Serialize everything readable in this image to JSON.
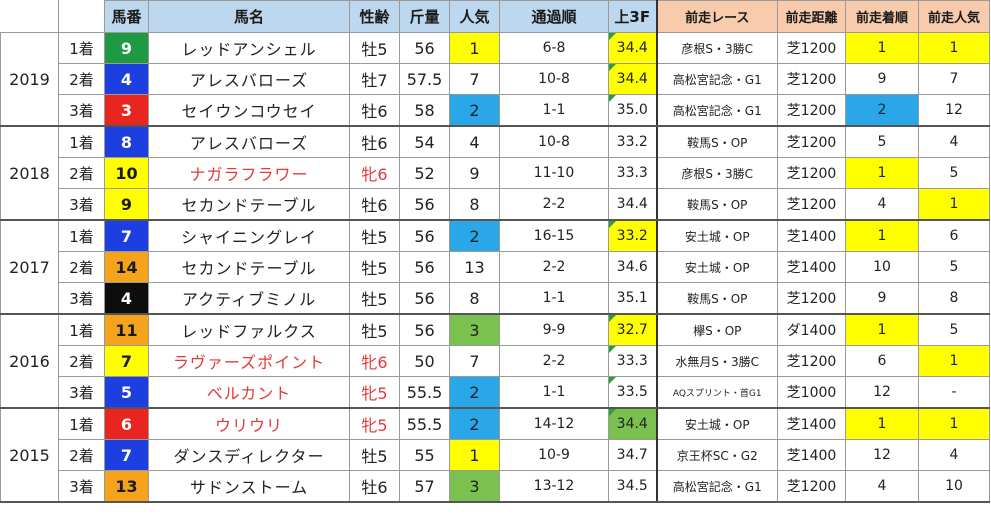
{
  "headers": [
    "馬番",
    "馬名",
    "性齢",
    "斤量",
    "人気",
    "通過順",
    "上3F",
    "前走レース",
    "前走距離",
    "前走着順",
    "前走人気"
  ],
  "groups": [
    {
      "year": "2019",
      "rows": [
        {
          "rank": "1着",
          "num": "9",
          "num_bg": "#1f9a43",
          "num_fg": "#ffffff",
          "name": "レッドアンシェル",
          "name_red": false,
          "sex": "牡5",
          "sex_red": false,
          "weight": "56",
          "pop": "1",
          "pop_hl": "y",
          "pass": "6-8",
          "f3": "34.4",
          "f3_hl": "y",
          "f3_mark": true,
          "prev_race": "彦根S・3勝C",
          "prev_small": false,
          "prev_dist": "芝1200",
          "prev_pos": "1",
          "prev_pos_hl": "y",
          "prev_pop": "1",
          "prev_pop_hl": "y"
        },
        {
          "rank": "2着",
          "num": "4",
          "num_bg": "#1d3fe0",
          "num_fg": "#ffffff",
          "name": "アレスバローズ",
          "name_red": false,
          "sex": "牡7",
          "sex_red": false,
          "weight": "57.5",
          "pop": "7",
          "pop_hl": "",
          "pass": "10-8",
          "f3": "34.4",
          "f3_hl": "y",
          "f3_mark": true,
          "prev_race": "高松宮記念・G1",
          "prev_small": false,
          "prev_dist": "芝1200",
          "prev_pos": "9",
          "prev_pos_hl": "",
          "prev_pop": "7",
          "prev_pop_hl": ""
        },
        {
          "rank": "3着",
          "num": "3",
          "num_bg": "#e8261f",
          "num_fg": "#ffffff",
          "name": "セイウンコウセイ",
          "name_red": false,
          "sex": "牡6",
          "sex_red": false,
          "weight": "58",
          "pop": "2",
          "pop_hl": "b",
          "pass": "1-1",
          "f3": "35.0",
          "f3_hl": "",
          "f3_mark": true,
          "prev_race": "高松宮記念・G1",
          "prev_small": false,
          "prev_dist": "芝1200",
          "prev_pos": "2",
          "prev_pos_hl": "b",
          "prev_pop": "12",
          "prev_pop_hl": ""
        }
      ]
    },
    {
      "year": "2018",
      "rows": [
        {
          "rank": "1着",
          "num": "8",
          "num_bg": "#1d3fe0",
          "num_fg": "#ffffff",
          "name": "アレスバローズ",
          "name_red": false,
          "sex": "牡6",
          "sex_red": false,
          "weight": "54",
          "pop": "4",
          "pop_hl": "",
          "pass": "10-8",
          "f3": "33.2",
          "f3_hl": "",
          "f3_mark": false,
          "prev_race": "鞍馬S・OP",
          "prev_small": false,
          "prev_dist": "芝1200",
          "prev_pos": "5",
          "prev_pos_hl": "",
          "prev_pop": "4",
          "prev_pop_hl": ""
        },
        {
          "rank": "2着",
          "num": "10",
          "num_bg": "#ffff00",
          "num_fg": "#1a1a1a",
          "name": "ナガラフラワー",
          "name_red": true,
          "sex": "牝6",
          "sex_red": true,
          "weight": "52",
          "pop": "9",
          "pop_hl": "",
          "pass": "11-10",
          "f3": "33.3",
          "f3_hl": "",
          "f3_mark": false,
          "prev_race": "彦根S・3勝C",
          "prev_small": false,
          "prev_dist": "芝1200",
          "prev_pos": "1",
          "prev_pos_hl": "y",
          "prev_pop": "5",
          "prev_pop_hl": ""
        },
        {
          "rank": "3着",
          "num": "9",
          "num_bg": "#ffff00",
          "num_fg": "#1a1a1a",
          "name": "セカンドテーブル",
          "name_red": false,
          "sex": "牡6",
          "sex_red": false,
          "weight": "56",
          "pop": "8",
          "pop_hl": "",
          "pass": "2-2",
          "f3": "34.4",
          "f3_hl": "",
          "f3_mark": false,
          "prev_race": "鞍馬S・OP",
          "prev_small": false,
          "prev_dist": "芝1200",
          "prev_pos": "4",
          "prev_pos_hl": "",
          "prev_pop": "1",
          "prev_pop_hl": "y"
        }
      ]
    },
    {
      "year": "2017",
      "rows": [
        {
          "rank": "1着",
          "num": "7",
          "num_bg": "#1d3fe0",
          "num_fg": "#ffffff",
          "name": "シャイニングレイ",
          "name_red": false,
          "sex": "牡5",
          "sex_red": false,
          "weight": "56",
          "pop": "2",
          "pop_hl": "b",
          "pass": "16-15",
          "f3": "33.2",
          "f3_hl": "y",
          "f3_mark": true,
          "prev_race": "安土城・OP",
          "prev_small": false,
          "prev_dist": "芝1400",
          "prev_pos": "1",
          "prev_pos_hl": "y",
          "prev_pop": "6",
          "prev_pop_hl": ""
        },
        {
          "rank": "2着",
          "num": "14",
          "num_bg": "#f5a31a",
          "num_fg": "#1a1a1a",
          "name": "セカンドテーブル",
          "name_red": false,
          "sex": "牡5",
          "sex_red": false,
          "weight": "56",
          "pop": "13",
          "pop_hl": "",
          "pass": "2-2",
          "f3": "34.6",
          "f3_hl": "",
          "f3_mark": false,
          "prev_race": "安土城・OP",
          "prev_small": false,
          "prev_dist": "芝1400",
          "prev_pos": "10",
          "prev_pos_hl": "",
          "prev_pop": "5",
          "prev_pop_hl": ""
        },
        {
          "rank": "3着",
          "num": "4",
          "num_bg": "#0d0d0d",
          "num_fg": "#ffffff",
          "name": "アクティブミノル",
          "name_red": false,
          "sex": "牡5",
          "sex_red": false,
          "weight": "56",
          "pop": "8",
          "pop_hl": "",
          "pass": "1-1",
          "f3": "35.1",
          "f3_hl": "",
          "f3_mark": false,
          "prev_race": "鞍馬S・OP",
          "prev_small": false,
          "prev_dist": "芝1200",
          "prev_pos": "9",
          "prev_pos_hl": "",
          "prev_pop": "8",
          "prev_pop_hl": ""
        }
      ]
    },
    {
      "year": "2016",
      "rows": [
        {
          "rank": "1着",
          "num": "11",
          "num_bg": "#f5a31a",
          "num_fg": "#1a1a1a",
          "name": "レッドファルクス",
          "name_red": false,
          "sex": "牡5",
          "sex_red": false,
          "weight": "56",
          "pop": "3",
          "pop_hl": "g",
          "pass": "9-9",
          "f3": "32.7",
          "f3_hl": "y",
          "f3_mark": true,
          "prev_race": "欅S・OP",
          "prev_small": false,
          "prev_dist": "ダ1400",
          "prev_pos": "1",
          "prev_pos_hl": "y",
          "prev_pop": "5",
          "prev_pop_hl": ""
        },
        {
          "rank": "2着",
          "num": "7",
          "num_bg": "#ffff00",
          "num_fg": "#1a1a1a",
          "name": "ラヴァーズポイント",
          "name_red": true,
          "sex": "牝6",
          "sex_red": true,
          "weight": "50",
          "pop": "7",
          "pop_hl": "",
          "pass": "2-2",
          "f3": "33.3",
          "f3_hl": "",
          "f3_mark": true,
          "prev_race": "水無月S・3勝C",
          "prev_small": false,
          "prev_dist": "芝1200",
          "prev_pos": "6",
          "prev_pos_hl": "",
          "prev_pop": "1",
          "prev_pop_hl": "y"
        },
        {
          "rank": "3着",
          "num": "5",
          "num_bg": "#1d3fe0",
          "num_fg": "#ffffff",
          "name": "ベルカント",
          "name_red": true,
          "sex": "牝5",
          "sex_red": true,
          "weight": "55.5",
          "pop": "2",
          "pop_hl": "b",
          "pass": "1-1",
          "f3": "33.5",
          "f3_hl": "",
          "f3_mark": true,
          "prev_race": "AQスプリント・首G1",
          "prev_small": true,
          "prev_dist": "芝1000",
          "prev_pos": "12",
          "prev_pos_hl": "",
          "prev_pop": "-",
          "prev_pop_hl": ""
        }
      ]
    },
    {
      "year": "2015",
      "rows": [
        {
          "rank": "1着",
          "num": "6",
          "num_bg": "#e8261f",
          "num_fg": "#ffffff",
          "name": "ウリウリ",
          "name_red": true,
          "sex": "牝5",
          "sex_red": true,
          "weight": "55.5",
          "pop": "2",
          "pop_hl": "b",
          "pass": "14-12",
          "f3": "34.4",
          "f3_hl": "g",
          "f3_mark": true,
          "prev_race": "安土城・OP",
          "prev_small": false,
          "prev_dist": "芝1400",
          "prev_pos": "1",
          "prev_pos_hl": "y",
          "prev_pop": "1",
          "prev_pop_hl": "y"
        },
        {
          "rank": "2着",
          "num": "7",
          "num_bg": "#1d3fe0",
          "num_fg": "#ffffff",
          "name": "ダンスディレクター",
          "name_red": false,
          "sex": "牡5",
          "sex_red": false,
          "weight": "55",
          "pop": "1",
          "pop_hl": "y",
          "pass": "10-9",
          "f3": "34.7",
          "f3_hl": "",
          "f3_mark": false,
          "prev_race": "京王杯SC・G2",
          "prev_small": false,
          "prev_dist": "芝1400",
          "prev_pos": "12",
          "prev_pos_hl": "",
          "prev_pop": "4",
          "prev_pop_hl": ""
        },
        {
          "rank": "3着",
          "num": "13",
          "num_bg": "#f5a31a",
          "num_fg": "#1a1a1a",
          "name": "サドンストーム",
          "name_red": false,
          "sex": "牡6",
          "sex_red": false,
          "weight": "57",
          "pop": "3",
          "pop_hl": "g",
          "pass": "13-12",
          "f3": "34.5",
          "f3_hl": "",
          "f3_mark": false,
          "prev_race": "高松宮記念・G1",
          "prev_small": false,
          "prev_dist": "芝1200",
          "prev_pos": "4",
          "prev_pos_hl": "",
          "prev_pop": "10",
          "prev_pop_hl": ""
        }
      ]
    }
  ]
}
